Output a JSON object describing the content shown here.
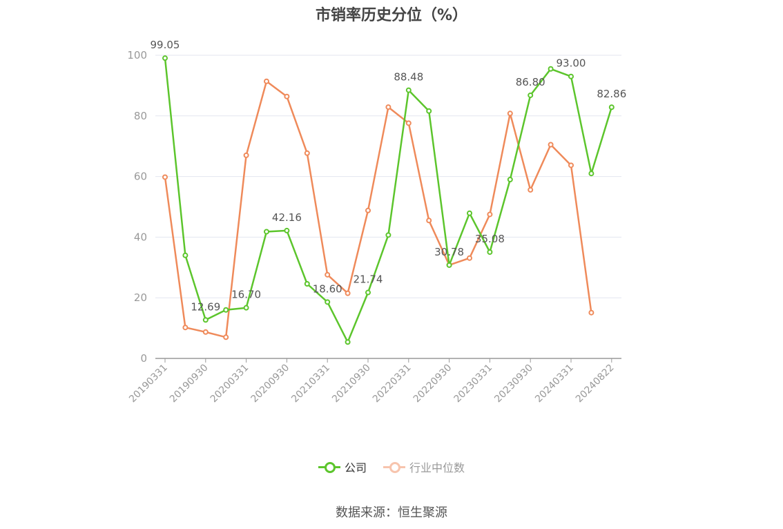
{
  "page": {
    "title": "市销率历史分位（%）",
    "source": "数据来源：恒生聚源"
  },
  "legend": [
    {
      "label": "公司",
      "color": "#5cc52c"
    },
    {
      "label": "行业中位数",
      "color": "#ef8a5a"
    }
  ],
  "chart_data": {
    "type": "line",
    "title": "市销率历史分位（%）",
    "xlabel": "",
    "ylabel": "",
    "ylim": [
      0,
      100
    ],
    "yticks": [
      0,
      20,
      40,
      60,
      80,
      100
    ],
    "grid": true,
    "legend_position": "bottom",
    "x": [
      "20190331",
      "20190630",
      "20190930",
      "20191231",
      "20200331",
      "20200630",
      "20200930",
      "20201231",
      "20210331",
      "20210630",
      "20210930",
      "20211231",
      "20220331",
      "20220630",
      "20220930",
      "20221231",
      "20230331",
      "20230630",
      "20230930",
      "20231231",
      "20240331",
      "20240630",
      "20240822"
    ],
    "x_tick_labels": [
      "20190331",
      "20190930",
      "20200331",
      "20200930",
      "20210331",
      "20210930",
      "20220331",
      "20220930",
      "20230331",
      "20230930",
      "20240331",
      "20240822"
    ],
    "series": [
      {
        "name": "公司",
        "color": "#5cc52c",
        "values": [
          99.05,
          34.0,
          12.69,
          16.0,
          16.7,
          41.8,
          42.16,
          24.6,
          18.6,
          5.4,
          21.74,
          40.7,
          88.48,
          81.6,
          30.78,
          47.9,
          35.08,
          59.0,
          86.8,
          95.5,
          93.0,
          61.0,
          82.86
        ],
        "labels": {
          "0": "99.05",
          "2": "12.69",
          "4": "16.70",
          "6": "42.16",
          "8": "18.60",
          "10": "21.74",
          "12": "88.48",
          "14": "30.78",
          "16": "35.08",
          "18": "86.80",
          "20": "93.00",
          "22": "82.86"
        }
      },
      {
        "name": "行业中位数",
        "color": "#ef8a5a",
        "values": [
          59.8,
          10.2,
          8.7,
          7.0,
          67.0,
          91.4,
          86.4,
          67.7,
          27.6,
          21.5,
          48.8,
          82.9,
          77.6,
          45.5,
          30.8,
          33.1,
          47.5,
          80.8,
          55.6,
          70.5,
          63.7,
          15.1,
          null
        ]
      }
    ]
  }
}
